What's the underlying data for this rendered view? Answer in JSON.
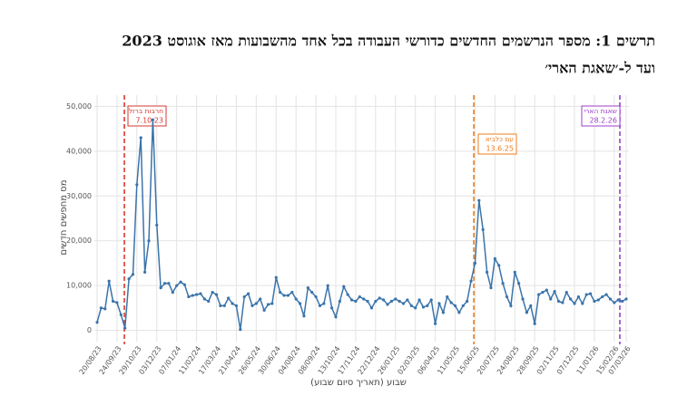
{
  "chart_data": {
    "type": "line",
    "title_lines": [
      "תרשים 1: מספר הנרשמים החדשים כדורשי העבודה בכל אחד מהשבועות מאז אוגוסט 2023",
      "ועד ל-׳שאגת הארי׳"
    ],
    "x_label": "שבוע (תאריך סיום שבוע)",
    "y_label": "מס מחפשים חדשים",
    "color": "#3a74aa",
    "grid": true,
    "ylim": [
      -2500,
      52500
    ],
    "yticks": [
      0,
      {
        "value": 10000,
        "label": "10,000"
      },
      {
        "value": 20000,
        "label": "20,000"
      },
      {
        "value": 30000,
        "label": "30,000"
      },
      {
        "value": 40000,
        "label": "40,000"
      },
      {
        "value": 50000,
        "label": "50,000"
      }
    ],
    "categories": [
      "20/08/23",
      null,
      null,
      null,
      null,
      "24/09/23",
      null,
      null,
      null,
      null,
      "29/10/23",
      null,
      null,
      null,
      null,
      "03/12/23",
      null,
      null,
      null,
      null,
      "07/01/24",
      null,
      null,
      null,
      null,
      "11/02/24",
      null,
      null,
      null,
      null,
      "17/03/24",
      null,
      null,
      null,
      null,
      "21/04/24",
      null,
      null,
      null,
      null,
      "26/05/24",
      null,
      null,
      null,
      null,
      "30/06/24",
      null,
      null,
      null,
      null,
      "04/08/24",
      null,
      null,
      null,
      null,
      "08/09/24",
      null,
      null,
      null,
      null,
      "13/10/24",
      null,
      null,
      null,
      null,
      "17/11/24",
      null,
      null,
      null,
      null,
      "22/12/24",
      null,
      null,
      null,
      null,
      "26/01/25",
      null,
      null,
      null,
      null,
      "02/03/25",
      null,
      null,
      null,
      null,
      "06/04/25",
      null,
      null,
      null,
      null,
      "11/05/25",
      null,
      null,
      null,
      null,
      "15/06/25",
      null,
      null,
      null,
      null,
      "20/07/25",
      null,
      null,
      null,
      null,
      "24/08/25",
      null,
      null,
      null,
      null,
      "28/09/25",
      null,
      null,
      null,
      null,
      "02/11/25",
      null,
      null,
      null,
      null,
      "07/12/25",
      null,
      null,
      null,
      null,
      "11/01/26",
      null,
      null,
      null,
      null,
      "15/02/26",
      null,
      null,
      "07/03/26"
    ],
    "values": [
      1800,
      5000,
      4800,
      11000,
      6500,
      6200,
      3500,
      500,
      11500,
      12500,
      32500,
      43000,
      13000,
      20000,
      47000,
      23500,
      9500,
      10500,
      10500,
      8500,
      10000,
      10800,
      10200,
      7500,
      7800,
      8000,
      8200,
      7000,
      6500,
      8500,
      8000,
      5500,
      5500,
      7200,
      6000,
      5500,
      200,
      7500,
      8200,
      5500,
      6000,
      7000,
      4500,
      5800,
      6000,
      11800,
      8500,
      7800,
      7800,
      8500,
      7000,
      6000,
      3200,
      9500,
      8500,
      7500,
      5500,
      6000,
      10000,
      5000,
      3000,
      6500,
      9800,
      8000,
      6800,
      6500,
      7500,
      7000,
      6500,
      5000,
      6500,
      7200,
      6800,
      5800,
      6500,
      7000,
      6500,
      6000,
      6800,
      5500,
      5000,
      6800,
      5200,
      5500,
      6800,
      1500,
      6000,
      4000,
      7500,
      6200,
      5500,
      4000,
      5500,
      6500,
      11000,
      15000,
      29000,
      22500,
      13000,
      9500,
      16000,
      14500,
      10500,
      7500,
      5500,
      13000,
      10500,
      7000,
      4000,
      5500,
      1500,
      8000,
      8500,
      9000,
      7000,
      8700,
      6500,
      6200,
      8500,
      7000,
      6000,
      7500,
      6000,
      8000,
      8200,
      6500,
      6800,
      7500,
      8000,
      7000,
      6200,
      6800,
      6500,
      7000
    ],
    "annotations": [
      {
        "label": "חרבות ברזל",
        "date": "7.10.23",
        "color": "#d63a2f"
      },
      {
        "label": "עם כלביא",
        "date": "13.6.25",
        "color": "#ec7c1c"
      },
      {
        "label": "שאגת הארי",
        "date": "28.2.26",
        "color": "#9b3fc8"
      }
    ]
  }
}
